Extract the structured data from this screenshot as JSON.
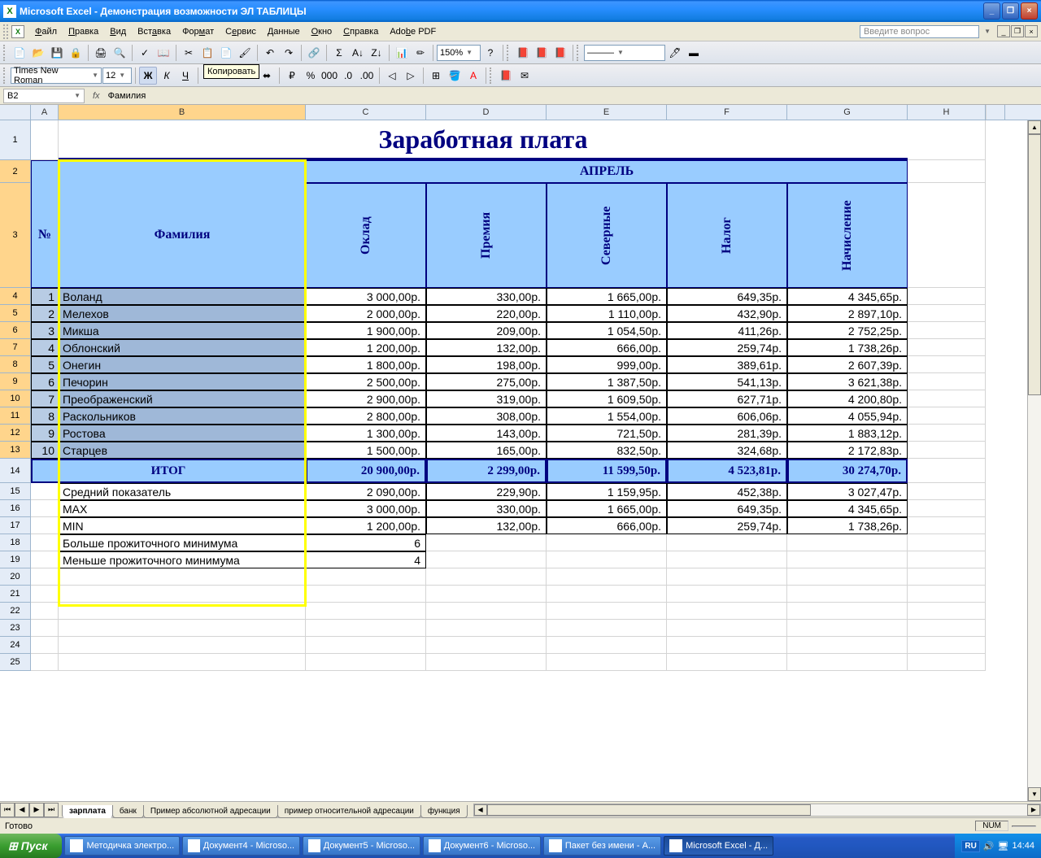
{
  "titlebar": {
    "app": "Microsoft Excel",
    "doc": "Демонстрация возможности ЭЛ ТАБЛИЦЫ"
  },
  "menu": [
    "Файл",
    "Правка",
    "Вид",
    "Вставка",
    "Формат",
    "Сервис",
    "Данные",
    "Окно",
    "Справка",
    "Adobe PDF"
  ],
  "askBox": "Введите вопрос",
  "tooltip": "Копировать",
  "toolbar2": {
    "font": "Times New Roman",
    "size": "12",
    "zoom": "150%"
  },
  "namebox": "B2",
  "formula": "Фамилия",
  "columns": [
    "A",
    "B",
    "C",
    "D",
    "E",
    "F",
    "G",
    "H"
  ],
  "title": "Заработная плата",
  "hdr": {
    "num": "№",
    "fam": "Фамилия",
    "month": "АПРЕЛЬ",
    "c": "Оклад",
    "d": "Премия",
    "e": "Северные",
    "f": "Налог",
    "g": "Начисление"
  },
  "rows": [
    {
      "n": "1",
      "name": "Воланд",
      "c": "3 000,00р.",
      "d": "330,00р.",
      "e": "1 665,00р.",
      "f": "649,35р.",
      "g": "4 345,65р."
    },
    {
      "n": "2",
      "name": "Мелехов",
      "c": "2 000,00р.",
      "d": "220,00р.",
      "e": "1 110,00р.",
      "f": "432,90р.",
      "g": "2 897,10р."
    },
    {
      "n": "3",
      "name": "Микша",
      "c": "1 900,00р.",
      "d": "209,00р.",
      "e": "1 054,50р.",
      "f": "411,26р.",
      "g": "2 752,25р."
    },
    {
      "n": "4",
      "name": "Облонский",
      "c": "1 200,00р.",
      "d": "132,00р.",
      "e": "666,00р.",
      "f": "259,74р.",
      "g": "1 738,26р."
    },
    {
      "n": "5",
      "name": "Онегин",
      "c": "1 800,00р.",
      "d": "198,00р.",
      "e": "999,00р.",
      "f": "389,61р.",
      "g": "2 607,39р."
    },
    {
      "n": "6",
      "name": "Печорин",
      "c": "2 500,00р.",
      "d": "275,00р.",
      "e": "1 387,50р.",
      "f": "541,13р.",
      "g": "3 621,38р."
    },
    {
      "n": "7",
      "name": "Преображенский",
      "c": "2 900,00р.",
      "d": "319,00р.",
      "e": "1 609,50р.",
      "f": "627,71р.",
      "g": "4 200,80р."
    },
    {
      "n": "8",
      "name": "Раскольников",
      "c": "2 800,00р.",
      "d": "308,00р.",
      "e": "1 554,00р.",
      "f": "606,06р.",
      "g": "4 055,94р."
    },
    {
      "n": "9",
      "name": "Ростова",
      "c": "1 300,00р.",
      "d": "143,00р.",
      "e": "721,50р.",
      "f": "281,39р.",
      "g": "1 883,12р."
    },
    {
      "n": "10",
      "name": "Старцев",
      "c": "1 500,00р.",
      "d": "165,00р.",
      "e": "832,50р.",
      "f": "324,68р.",
      "g": "2 172,83р."
    }
  ],
  "itog": {
    "label": "ИТОГ",
    "c": "20 900,00р.",
    "d": "2 299,00р.",
    "e": "11 599,50р.",
    "f": "4 523,81р.",
    "g": "30 274,70р."
  },
  "stats": [
    {
      "label": "Средний показатель",
      "c": "2 090,00р.",
      "d": "229,90р.",
      "e": "1 159,95р.",
      "f": "452,38р.",
      "g": "3 027,47р."
    },
    {
      "label": "MAX",
      "c": "3 000,00р.",
      "d": "330,00р.",
      "e": "1 665,00р.",
      "f": "649,35р.",
      "g": "4 345,65р."
    },
    {
      "label": "MIN",
      "c": "1 200,00р.",
      "d": "132,00р.",
      "e": "666,00р.",
      "f": "259,74р.",
      "g": "1 738,26р."
    }
  ],
  "extra": [
    {
      "label": "Больше прожиточного минимума",
      "c": "6"
    },
    {
      "label": "Меньше прожиточного минимума",
      "c": "4"
    }
  ],
  "sheetTabs": [
    "зарплата",
    "банк",
    "Пример абсолютной адресации",
    "пример относительной адресации",
    "функция"
  ],
  "status": "Готово",
  "numInd": "NUM",
  "taskbar": {
    "start": "Пуск",
    "items": [
      "Методичка электро...",
      "Документ4 - Microso...",
      "Документ5 - Microso...",
      "Документ6 - Microso...",
      "Пакет без имени - A...",
      "Microsoft Excel - Д..."
    ],
    "lang": "RU",
    "time": "14:44"
  }
}
